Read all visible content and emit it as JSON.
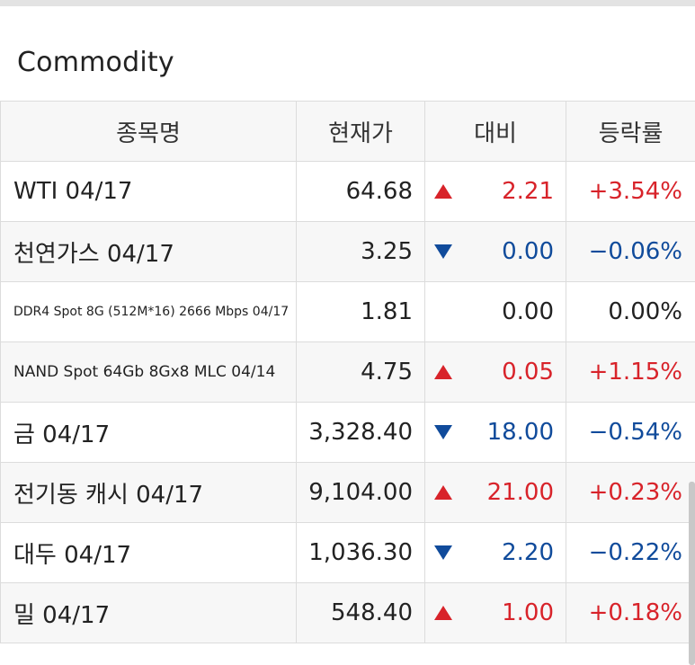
{
  "section": {
    "title": "Commodity"
  },
  "table": {
    "headers": {
      "name": "종목명",
      "price": "현재가",
      "change": "대비",
      "rate": "등락률"
    },
    "rows": [
      {
        "name": "WTI 04/17",
        "price": "64.68",
        "direction": "up",
        "change": "2.21",
        "rate": "+3.54%"
      },
      {
        "name": "천연가스 04/17",
        "price": "3.25",
        "direction": "down",
        "change": "0.00",
        "rate": "−0.06%"
      },
      {
        "name": "DDR4 Spot 8G (512M*16) 2666 Mbps 04/17",
        "price": "1.81",
        "direction": "flat",
        "change": "0.00",
        "rate": "0.00%"
      },
      {
        "name": "NAND Spot 64Gb 8Gx8 MLC 04/14",
        "price": "4.75",
        "direction": "up",
        "change": "0.05",
        "rate": "+1.15%"
      },
      {
        "name": "금 04/17",
        "price": "3,328.40",
        "direction": "down",
        "change": "18.00",
        "rate": "−0.54%"
      },
      {
        "name": "전기동 캐시 04/17",
        "price": "9,104.00",
        "direction": "up",
        "change": "21.00",
        "rate": "+0.23%"
      },
      {
        "name": "대두 04/17",
        "price": "1,036.30",
        "direction": "down",
        "change": "2.20",
        "rate": "−0.22%"
      },
      {
        "name": "밀 04/17",
        "price": "548.40",
        "direction": "up",
        "change": "1.00",
        "rate": "+0.18%"
      }
    ]
  },
  "colors": {
    "up": "#d8232a",
    "down": "#104b9b",
    "flat": "#222222"
  },
  "icons": {
    "up": "triangle-up-icon",
    "down": "triangle-down-icon"
  }
}
